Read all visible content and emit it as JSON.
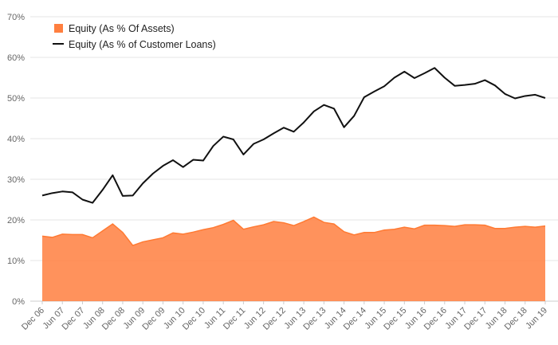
{
  "chart_data": {
    "type": "area",
    "title": "",
    "xlabel": "",
    "ylabel": "",
    "ylim": [
      0,
      70
    ],
    "y_ticks": [
      "0%",
      "10%",
      "20%",
      "30%",
      "40%",
      "50%",
      "60%",
      "70%"
    ],
    "y_tick_values": [
      0,
      10,
      20,
      30,
      40,
      50,
      60,
      70
    ],
    "grid": true,
    "legend_position": "top-left",
    "x_tick_labels": [
      "Dec 06",
      "Jun 07",
      "Dec 07",
      "Jun 08",
      "Dec 08",
      "Jun 09",
      "Dec 09",
      "Jun 10",
      "Dec 10",
      "Jun 11",
      "Dec 11",
      "Jun 12",
      "Dec 12",
      "Jun 13",
      "Dec 13",
      "Jun 14",
      "Dec 14",
      "Jun 15",
      "Dec 15",
      "Jun 16",
      "Dec 16",
      "Jun 17",
      "Dec 17",
      "Jun 18",
      "Dec 18",
      "Jun 19"
    ],
    "series": [
      {
        "name": "Equity (As % Of Assets)",
        "kind": "area",
        "color": "#ff7f3f",
        "values": [
          16.0,
          15.7,
          16.5,
          16.4,
          16.4,
          15.6,
          17.3,
          19.0,
          16.9,
          13.7,
          14.6,
          15.1,
          15.6,
          16.8,
          16.5,
          17.0,
          17.6,
          18.1,
          18.9,
          19.9,
          17.7,
          18.3,
          18.8,
          19.6,
          19.3,
          18.6,
          19.6,
          20.7,
          19.4,
          19.0,
          17.1,
          16.3,
          16.9,
          16.9,
          17.5,
          17.7,
          18.2,
          17.8,
          18.7,
          18.7,
          18.6,
          18.4,
          18.8,
          18.8,
          18.7,
          17.9,
          17.9,
          18.2,
          18.4,
          18.2,
          18.5
        ]
      },
      {
        "name": "Equity (As % of Customer Loans)",
        "kind": "line",
        "color": "#111111",
        "values": [
          26.0,
          26.6,
          27.0,
          26.8,
          25.0,
          24.2,
          27.4,
          31.0,
          25.9,
          26.0,
          29.0,
          31.4,
          33.3,
          34.7,
          33.0,
          34.8,
          34.6,
          38.2,
          40.5,
          39.8,
          36.1,
          38.7,
          39.8,
          41.3,
          42.7,
          41.7,
          44.0,
          46.7,
          48.3,
          47.4,
          42.8,
          45.6,
          50.2,
          51.6,
          52.9,
          55.0,
          56.5,
          54.9,
          56.1,
          57.4,
          55.0,
          53.0,
          53.2,
          53.5,
          54.4,
          53.1,
          51.0,
          49.9,
          50.5,
          50.8,
          50.0
        ]
      }
    ]
  }
}
